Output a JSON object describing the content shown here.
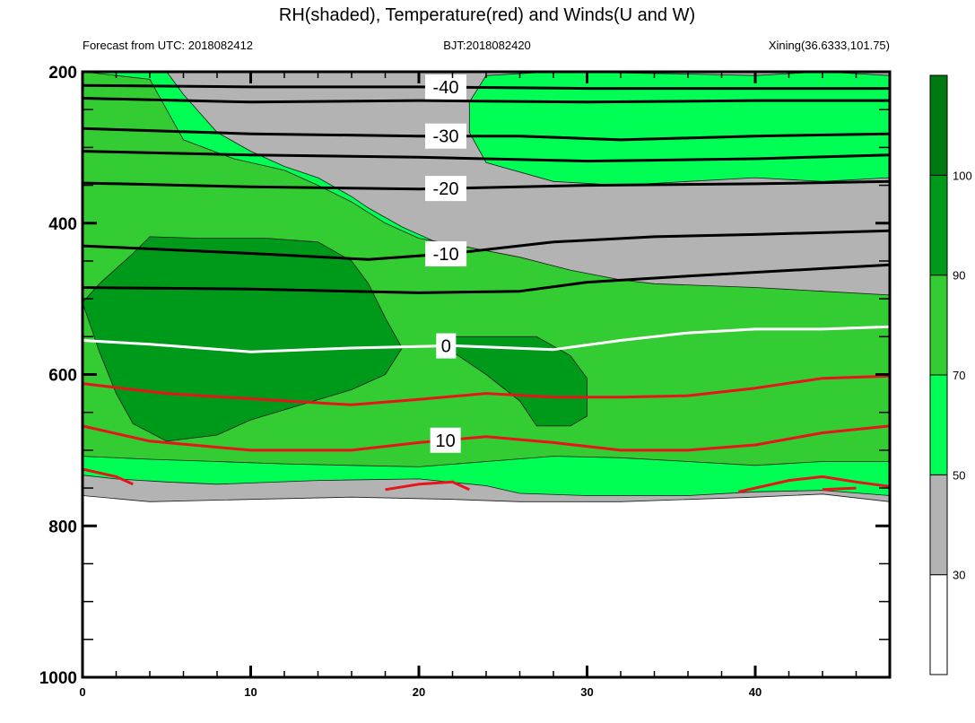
{
  "header": {
    "title": "RH(shaded), Temperature(red) and Winds(U and W)",
    "left_sub": "Forecast from UTC: 2018082412",
    "center_sub": "BJT:2018082420",
    "right_sub": "Xining(36.6333,101.75)"
  },
  "colors": {
    "rh_lt30": "#ffffff",
    "rh_30_50": "#b3b3b3",
    "rh_50_70": "#00ff55",
    "rh_70_90": "#33cc33",
    "rh_90_100": "#009a1a",
    "rh_gt100": "#007a10",
    "temperature_line": "#e8141b",
    "zero_isotherm": "#ffffff",
    "cold_isotherm": "#000000"
  },
  "chart_data": {
    "type": "contour",
    "title": "RH(shaded), Temperature(red) and Winds(U and W)",
    "x_axis": {
      "range": [
        0,
        48
      ],
      "ticks": [
        0,
        10,
        20,
        30,
        40
      ]
    },
    "y_axis": {
      "range": [
        200,
        1000
      ],
      "ticks": [
        200,
        400,
        600,
        800,
        1000
      ],
      "inverted": true
    },
    "colorbar": {
      "levels": [
        30,
        50,
        70,
        90,
        100
      ],
      "labels": [
        "30",
        "50",
        "70",
        "90",
        "100"
      ]
    },
    "rh_regions": [
      {
        "name": "rh>=30",
        "level": 30,
        "upper": [
          [
            0,
            200
          ],
          [
            48,
            200
          ]
        ],
        "lower": [
          [
            0,
            760
          ],
          [
            4,
            768
          ],
          [
            10,
            765
          ],
          [
            16,
            762
          ],
          [
            22,
            765
          ],
          [
            26,
            768
          ],
          [
            32,
            768
          ],
          [
            40,
            762
          ],
          [
            44,
            758
          ],
          [
            48,
            768
          ]
        ]
      },
      {
        "name": "rh>=50 upper",
        "level": 50,
        "outline": [
          [
            0,
            200
          ],
          [
            5,
            200
          ],
          [
            6,
            230
          ],
          [
            8,
            280
          ],
          [
            10,
            305
          ],
          [
            12,
            325
          ],
          [
            14,
            340
          ],
          [
            16,
            365
          ],
          [
            17,
            380
          ],
          [
            19,
            405
          ],
          [
            21,
            425
          ],
          [
            23,
            440
          ],
          [
            25,
            450
          ],
          [
            28,
            462
          ],
          [
            31,
            478
          ],
          [
            33,
            485
          ],
          [
            38,
            495
          ],
          [
            40,
            490
          ],
          [
            44,
            490
          ],
          [
            48,
            505
          ],
          [
            48,
            600
          ],
          [
            0,
            600
          ]
        ]
      },
      {
        "name": "rh>=50 lower",
        "level": 50,
        "outline": [
          [
            0,
            600
          ],
          [
            48,
            600
          ],
          [
            48,
            760
          ],
          [
            44,
            753
          ],
          [
            40,
            755
          ],
          [
            36,
            760
          ],
          [
            30,
            760
          ],
          [
            26,
            757
          ],
          [
            24,
            747
          ],
          [
            20,
            738
          ],
          [
            14,
            740
          ],
          [
            8,
            745
          ],
          [
            5,
            742
          ],
          [
            2,
            738
          ],
          [
            0,
            733
          ]
        ]
      },
      {
        "name": "rh>=70",
        "level": 70,
        "outline": [
          [
            0,
            200
          ],
          [
            4,
            210
          ],
          [
            5,
            250
          ],
          [
            6,
            290
          ],
          [
            9,
            315
          ],
          [
            12,
            330
          ],
          [
            14,
            350
          ],
          [
            16,
            372
          ],
          [
            18,
            400
          ],
          [
            20,
            420
          ],
          [
            23,
            432
          ],
          [
            26,
            445
          ],
          [
            29,
            462
          ],
          [
            32,
            475
          ],
          [
            34,
            480
          ],
          [
            40,
            485
          ],
          [
            44,
            490
          ],
          [
            48,
            495
          ],
          [
            48,
            715
          ],
          [
            44,
            715
          ],
          [
            40,
            720
          ],
          [
            36,
            715
          ],
          [
            32,
            710
          ],
          [
            28,
            708
          ],
          [
            24,
            715
          ],
          [
            20,
            722
          ],
          [
            16,
            720
          ],
          [
            12,
            718
          ],
          [
            8,
            715
          ],
          [
            4,
            712
          ],
          [
            0,
            708
          ]
        ]
      },
      {
        "name": "rh>=90 left",
        "level": 90,
        "outline": [
          [
            0,
            505
          ],
          [
            1,
            480
          ],
          [
            3,
            440
          ],
          [
            4,
            418
          ],
          [
            7,
            420
          ],
          [
            11,
            420
          ],
          [
            14,
            425
          ],
          [
            16,
            450
          ],
          [
            17,
            480
          ],
          [
            18,
            525
          ],
          [
            19,
            565
          ],
          [
            18,
            600
          ],
          [
            16,
            620
          ],
          [
            13,
            640
          ],
          [
            10,
            660
          ],
          [
            8,
            680
          ],
          [
            5,
            688
          ],
          [
            3,
            665
          ],
          [
            2,
            625
          ],
          [
            1,
            570
          ]
        ]
      },
      {
        "name": "rh>=90 middle",
        "level": 90,
        "outline": [
          [
            22,
            550
          ],
          [
            27,
            550
          ],
          [
            29,
            575
          ],
          [
            30,
            605
          ],
          [
            30,
            655
          ],
          [
            29,
            668
          ],
          [
            27,
            668
          ],
          [
            26,
            635
          ],
          [
            24,
            600
          ],
          [
            22,
            570
          ]
        ]
      },
      {
        "name": "rh>=50 top right",
        "level": 50,
        "outline": [
          [
            24,
            205
          ],
          [
            28,
            200
          ],
          [
            36,
            203
          ],
          [
            40,
            205
          ],
          [
            44,
            200
          ],
          [
            48,
            205
          ],
          [
            48,
            340
          ],
          [
            44,
            345
          ],
          [
            40,
            340
          ],
          [
            36,
            345
          ],
          [
            32,
            350
          ],
          [
            28,
            345
          ],
          [
            24,
            320
          ],
          [
            23,
            280
          ],
          [
            23,
            240
          ]
        ]
      }
    ],
    "temperature_contours": [
      {
        "level": -40,
        "label": "-40",
        "points": [
          [
            0,
            218
          ],
          [
            10,
            220
          ],
          [
            20,
            220
          ],
          [
            30,
            222
          ],
          [
            40,
            222
          ],
          [
            48,
            222
          ]
        ]
      },
      {
        "level": -40,
        "label": "",
        "points": [
          [
            0,
            235
          ],
          [
            10,
            240
          ],
          [
            20,
            238
          ],
          [
            30,
            240
          ],
          [
            40,
            238
          ],
          [
            48,
            238
          ]
        ]
      },
      {
        "level": -30,
        "label": "-30",
        "points": [
          [
            0,
            275
          ],
          [
            10,
            282
          ],
          [
            20,
            285
          ],
          [
            26,
            285
          ],
          [
            32,
            290
          ],
          [
            40,
            285
          ],
          [
            48,
            282
          ]
        ]
      },
      {
        "level": -30,
        "label": "",
        "points": [
          [
            0,
            305
          ],
          [
            10,
            310
          ],
          [
            20,
            313
          ],
          [
            30,
            318
          ],
          [
            40,
            315
          ],
          [
            48,
            310
          ]
        ]
      },
      {
        "level": -20,
        "label": "-20",
        "points": [
          [
            0,
            347
          ],
          [
            10,
            352
          ],
          [
            20,
            355
          ],
          [
            30,
            350
          ],
          [
            40,
            348
          ],
          [
            48,
            345
          ]
        ]
      },
      {
        "level": -10,
        "label": "-10",
        "points": [
          [
            0,
            430
          ],
          [
            10,
            440
          ],
          [
            17,
            448
          ],
          [
            22,
            440
          ],
          [
            28,
            425
          ],
          [
            34,
            418
          ],
          [
            40,
            415
          ],
          [
            48,
            410
          ]
        ]
      },
      {
        "level": -10,
        "label": "",
        "points": [
          [
            0,
            485
          ],
          [
            10,
            487
          ],
          [
            20,
            492
          ],
          [
            26,
            490
          ],
          [
            30,
            478
          ],
          [
            36,
            470
          ],
          [
            44,
            460
          ],
          [
            48,
            455
          ]
        ]
      },
      {
        "level": 0,
        "label": "0",
        "points": [
          [
            0,
            555
          ],
          [
            4,
            560
          ],
          [
            10,
            570
          ],
          [
            16,
            565
          ],
          [
            22,
            562
          ],
          [
            28,
            567
          ],
          [
            32,
            555
          ],
          [
            36,
            545
          ],
          [
            40,
            540
          ],
          [
            44,
            540
          ],
          [
            48,
            537
          ]
        ]
      },
      {
        "level": 10,
        "label": "",
        "points": [
          [
            0,
            612
          ],
          [
            5,
            625
          ],
          [
            10,
            632
          ],
          [
            16,
            640
          ],
          [
            20,
            633
          ],
          [
            24,
            625
          ],
          [
            28,
            630
          ],
          [
            32,
            630
          ],
          [
            36,
            628
          ],
          [
            40,
            618
          ],
          [
            44,
            605
          ],
          [
            48,
            602
          ]
        ]
      },
      {
        "level": 10,
        "label": "10",
        "points": [
          [
            0,
            668
          ],
          [
            4,
            688
          ],
          [
            10,
            700
          ],
          [
            16,
            700
          ],
          [
            20,
            690
          ],
          [
            24,
            682
          ],
          [
            28,
            690
          ],
          [
            32,
            700
          ],
          [
            36,
            700
          ],
          [
            40,
            693
          ],
          [
            44,
            677
          ],
          [
            48,
            668
          ]
        ]
      },
      {
        "level": 10,
        "label": "",
        "points": [
          [
            0,
            725
          ],
          [
            2,
            735
          ],
          [
            3,
            745
          ]
        ]
      },
      {
        "level": 10,
        "label": "",
        "points": [
          [
            18,
            752
          ],
          [
            20,
            745
          ],
          [
            22,
            742
          ],
          [
            23,
            752
          ]
        ]
      },
      {
        "level": 10,
        "label": "",
        "points": [
          [
            39,
            755
          ],
          [
            42,
            740
          ],
          [
            44,
            735
          ],
          [
            46,
            742
          ],
          [
            48,
            748
          ]
        ]
      },
      {
        "level": 10,
        "label": "",
        "points": [
          [
            44,
            752
          ],
          [
            46,
            750
          ]
        ]
      }
    ],
    "wind_points": []
  }
}
